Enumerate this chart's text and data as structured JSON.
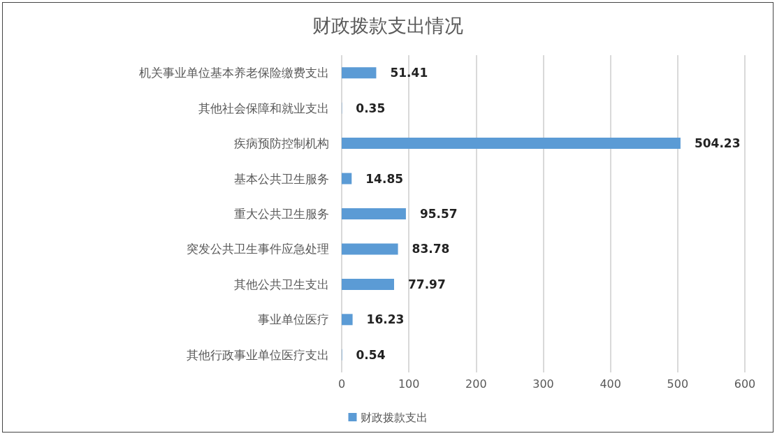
{
  "chart_data": {
    "type": "bar",
    "orientation": "horizontal",
    "title": "财政拨款支出情况",
    "categories": [
      "机关事业单位基本养老保险缴费支出",
      "其他社会保障和就业支出",
      "疾病预防控制机构",
      "基本公共卫生服务",
      "重大公共卫生服务",
      "突发公共卫生事件应急处理",
      "其他公共卫生支出",
      "事业单位医疗",
      "其他行政事业单位医疗支出"
    ],
    "series": [
      {
        "name": "财政拨款支出",
        "color": "#5b9bd5",
        "values": [
          51.41,
          0.35,
          504.23,
          14.85,
          95.57,
          83.78,
          77.97,
          16.23,
          0.54
        ]
      }
    ],
    "xlim": [
      0,
      600
    ],
    "xticks": [
      0,
      100,
      200,
      300,
      400,
      500,
      600
    ],
    "grid": "x",
    "legend": "bottom",
    "data_labels": true
  }
}
